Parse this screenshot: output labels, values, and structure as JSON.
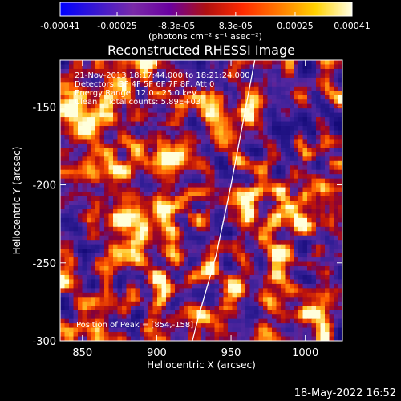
{
  "colorbar": {
    "ticks": [
      {
        "value": -0.00041,
        "label": "-0.00041"
      },
      {
        "value": -0.00025,
        "label": "-0.00025"
      },
      {
        "value": -8.3e-05,
        "label": "-8.3e-05"
      },
      {
        "value": 8.3e-05,
        "label": "8.3e-05"
      },
      {
        "value": 0.00025,
        "label": "0.00025"
      },
      {
        "value": 0.00041,
        "label": "0.00041"
      }
    ],
    "range": [
      -0.00041,
      0.00041
    ],
    "units_label": "(photons cm⁻² s⁻¹ asec⁻²)",
    "colors": [
      "#0000ff",
      "#3a18d0",
      "#7a2aa8",
      "#6a00a0",
      "#b01010",
      "#ff2a00",
      "#ff7a00",
      "#ffd200",
      "#ffffe6"
    ]
  },
  "chart_data": {
    "type": "heatmap",
    "title": "Reconstructed RHESSI Image",
    "xlabel": "Heliocentric X (arcsec)",
    "ylabel": "Heliocentric Y (arcsec)",
    "xlim": [
      835,
      1025
    ],
    "ylim": [
      -300,
      -120
    ],
    "x_ticks": [
      850,
      900,
      950,
      1000
    ],
    "y_ticks": [
      -150,
      -200,
      -250,
      -300
    ],
    "annotations": [
      "21-Nov-2013 18:17:44.000 to 18:21:24.000",
      "Detectors: 3F 4F 5F 6F 7F 8F, Att 0",
      "Energy Range: 12.0 - 25.0 keV",
      "Clean    Total counts: 5.89E+03"
    ],
    "peak_label": "Position of Peak = [854,-158]",
    "peak_position": [
      854,
      -158
    ],
    "limb_points": [
      [
        966,
        -120
      ],
      [
        958,
        -160
      ],
      [
        950,
        -200
      ],
      [
        940,
        -245
      ],
      [
        928,
        -285
      ],
      [
        924,
        -300
      ]
    ],
    "grid": false,
    "colormap": "hot-blue"
  },
  "timestamp": "18-May-2022 16:52"
}
